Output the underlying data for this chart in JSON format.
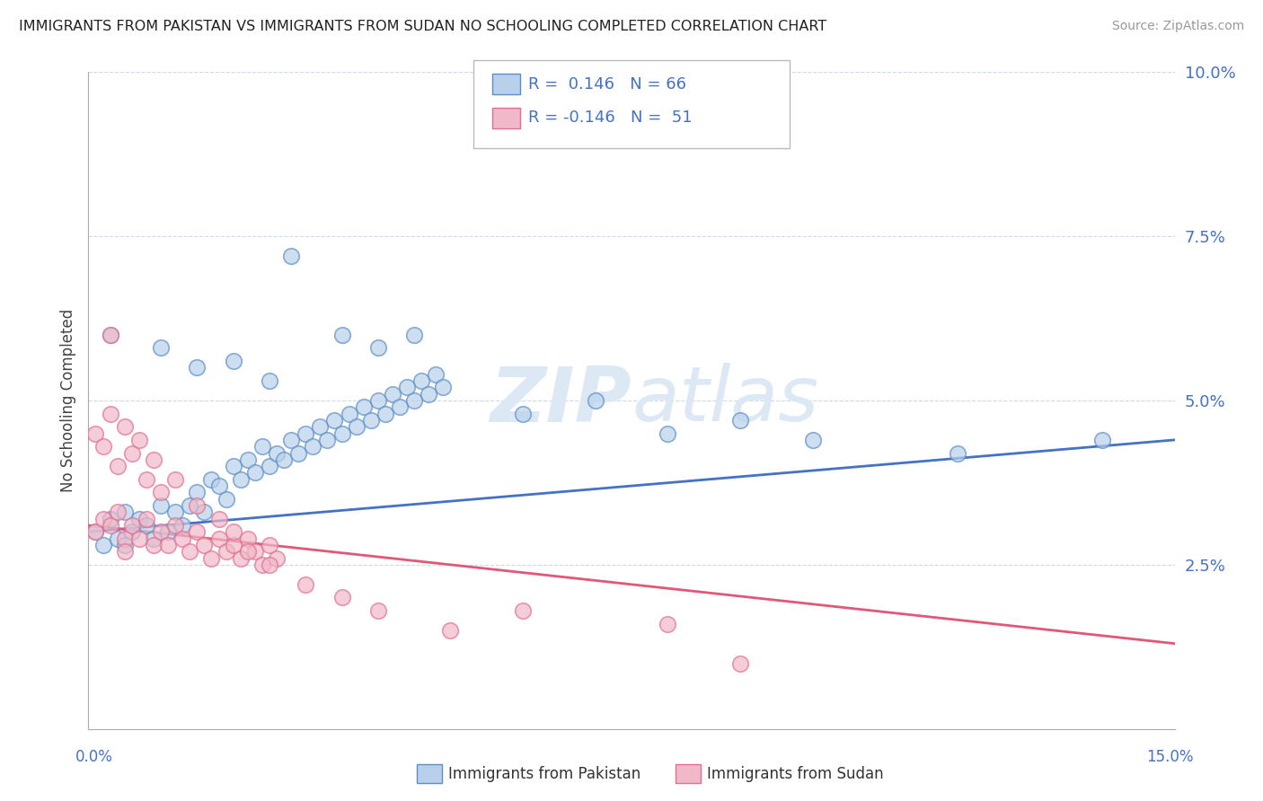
{
  "title": "IMMIGRANTS FROM PAKISTAN VS IMMIGRANTS FROM SUDAN NO SCHOOLING COMPLETED CORRELATION CHART",
  "source": "Source: ZipAtlas.com",
  "ylabel": "No Schooling Completed",
  "xlim": [
    0,
    0.15
  ],
  "ylim": [
    0,
    0.1
  ],
  "yticks": [
    0.025,
    0.05,
    0.075,
    0.1
  ],
  "ytick_labels": [
    "2.5%",
    "5.0%",
    "7.5%",
    "10.0%"
  ],
  "pakistan_R": "0.146",
  "pakistan_N": "66",
  "sudan_R": "-0.146",
  "sudan_N": "51",
  "pakistan_color": "#b8d0ea",
  "sudan_color": "#f0b8c8",
  "pakistan_edge_color": "#5b8ec4",
  "sudan_edge_color": "#e07090",
  "pakistan_line_color": "#4472c4",
  "sudan_line_color": "#e05878",
  "tick_label_color": "#4472c4",
  "watermark_color": "#dde8f5",
  "background_color": "#ffffff",
  "grid_color": "#d0d8e8",
  "pak_line_x": [
    0.0,
    0.15
  ],
  "pak_line_y": [
    0.03,
    0.044
  ],
  "sud_line_x": [
    0.0,
    0.15
  ],
  "sud_line_y": [
    0.031,
    0.013
  ],
  "pakistan_scatter": [
    [
      0.001,
      0.03
    ],
    [
      0.002,
      0.028
    ],
    [
      0.003,
      0.032
    ],
    [
      0.004,
      0.029
    ],
    [
      0.005,
      0.033
    ],
    [
      0.005,
      0.028
    ],
    [
      0.006,
      0.03
    ],
    [
      0.007,
      0.032
    ],
    [
      0.008,
      0.031
    ],
    [
      0.009,
      0.029
    ],
    [
      0.01,
      0.034
    ],
    [
      0.011,
      0.03
    ],
    [
      0.012,
      0.033
    ],
    [
      0.013,
      0.031
    ],
    [
      0.014,
      0.034
    ],
    [
      0.015,
      0.036
    ],
    [
      0.016,
      0.033
    ],
    [
      0.017,
      0.038
    ],
    [
      0.018,
      0.037
    ],
    [
      0.019,
      0.035
    ],
    [
      0.02,
      0.04
    ],
    [
      0.021,
      0.038
    ],
    [
      0.022,
      0.041
    ],
    [
      0.023,
      0.039
    ],
    [
      0.024,
      0.043
    ],
    [
      0.025,
      0.04
    ],
    [
      0.026,
      0.042
    ],
    [
      0.027,
      0.041
    ],
    [
      0.028,
      0.044
    ],
    [
      0.029,
      0.042
    ],
    [
      0.03,
      0.045
    ],
    [
      0.031,
      0.043
    ],
    [
      0.032,
      0.046
    ],
    [
      0.033,
      0.044
    ],
    [
      0.034,
      0.047
    ],
    [
      0.035,
      0.045
    ],
    [
      0.036,
      0.048
    ],
    [
      0.037,
      0.046
    ],
    [
      0.038,
      0.049
    ],
    [
      0.039,
      0.047
    ],
    [
      0.04,
      0.05
    ],
    [
      0.041,
      0.048
    ],
    [
      0.042,
      0.051
    ],
    [
      0.043,
      0.049
    ],
    [
      0.044,
      0.052
    ],
    [
      0.045,
      0.05
    ],
    [
      0.046,
      0.053
    ],
    [
      0.047,
      0.051
    ],
    [
      0.048,
      0.054
    ],
    [
      0.049,
      0.052
    ],
    [
      0.003,
      0.06
    ],
    [
      0.01,
      0.058
    ],
    [
      0.015,
      0.055
    ],
    [
      0.02,
      0.056
    ],
    [
      0.025,
      0.053
    ],
    [
      0.028,
      0.072
    ],
    [
      0.035,
      0.06
    ],
    [
      0.04,
      0.058
    ],
    [
      0.045,
      0.06
    ],
    [
      0.06,
      0.048
    ],
    [
      0.07,
      0.05
    ],
    [
      0.08,
      0.045
    ],
    [
      0.09,
      0.047
    ],
    [
      0.1,
      0.044
    ],
    [
      0.12,
      0.042
    ],
    [
      0.14,
      0.044
    ]
  ],
  "sudan_scatter": [
    [
      0.001,
      0.03
    ],
    [
      0.002,
      0.032
    ],
    [
      0.003,
      0.031
    ],
    [
      0.004,
      0.033
    ],
    [
      0.005,
      0.029
    ],
    [
      0.005,
      0.027
    ],
    [
      0.006,
      0.031
    ],
    [
      0.007,
      0.029
    ],
    [
      0.008,
      0.032
    ],
    [
      0.009,
      0.028
    ],
    [
      0.01,
      0.03
    ],
    [
      0.011,
      0.028
    ],
    [
      0.012,
      0.031
    ],
    [
      0.013,
      0.029
    ],
    [
      0.014,
      0.027
    ],
    [
      0.015,
      0.03
    ],
    [
      0.016,
      0.028
    ],
    [
      0.017,
      0.026
    ],
    [
      0.018,
      0.029
    ],
    [
      0.019,
      0.027
    ],
    [
      0.02,
      0.028
    ],
    [
      0.021,
      0.026
    ],
    [
      0.022,
      0.029
    ],
    [
      0.023,
      0.027
    ],
    [
      0.024,
      0.025
    ],
    [
      0.025,
      0.028
    ],
    [
      0.026,
      0.026
    ],
    [
      0.001,
      0.045
    ],
    [
      0.002,
      0.043
    ],
    [
      0.003,
      0.048
    ],
    [
      0.004,
      0.04
    ],
    [
      0.005,
      0.046
    ],
    [
      0.006,
      0.042
    ],
    [
      0.007,
      0.044
    ],
    [
      0.008,
      0.038
    ],
    [
      0.009,
      0.041
    ],
    [
      0.01,
      0.036
    ],
    [
      0.012,
      0.038
    ],
    [
      0.015,
      0.034
    ],
    [
      0.018,
      0.032
    ],
    [
      0.02,
      0.03
    ],
    [
      0.022,
      0.027
    ],
    [
      0.025,
      0.025
    ],
    [
      0.03,
      0.022
    ],
    [
      0.035,
      0.02
    ],
    [
      0.04,
      0.018
    ],
    [
      0.05,
      0.015
    ],
    [
      0.06,
      0.018
    ],
    [
      0.08,
      0.016
    ],
    [
      0.003,
      0.06
    ],
    [
      0.09,
      0.01
    ]
  ]
}
